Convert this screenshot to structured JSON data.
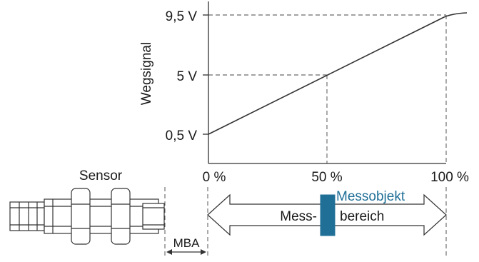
{
  "y_axis_title": "Wegsignal",
  "y_ticks": [
    "9,5 V",
    "5 V",
    "0,5 V"
  ],
  "x_ticks": [
    "0 %",
    "50 %",
    "100 %"
  ],
  "sensor_label": "Sensor",
  "target_label": "Messobjekt",
  "range_label_left": "Mess-",
  "range_label_right": "bereich",
  "mba_label": "MBA",
  "colors": {
    "line": "#333333",
    "accent": "#1f6f97",
    "target_text": "#1f6f97"
  },
  "chart_data": {
    "type": "line",
    "x_unit": "%",
    "y_unit": "V",
    "points": [
      [
        0,
        0.5
      ],
      [
        50,
        5
      ],
      [
        100,
        9.5
      ]
    ],
    "x_ticks": [
      0,
      50,
      100
    ],
    "y_ticks": [
      0.5,
      5,
      9.5
    ],
    "xlim": [
      0,
      100
    ],
    "ylim": [
      0.5,
      9.5
    ],
    "xlabel": "",
    "ylabel": "Wegsignal",
    "grid": "dashed guide lines at 5 V / 50 % and 9,5 V / 100 %"
  }
}
